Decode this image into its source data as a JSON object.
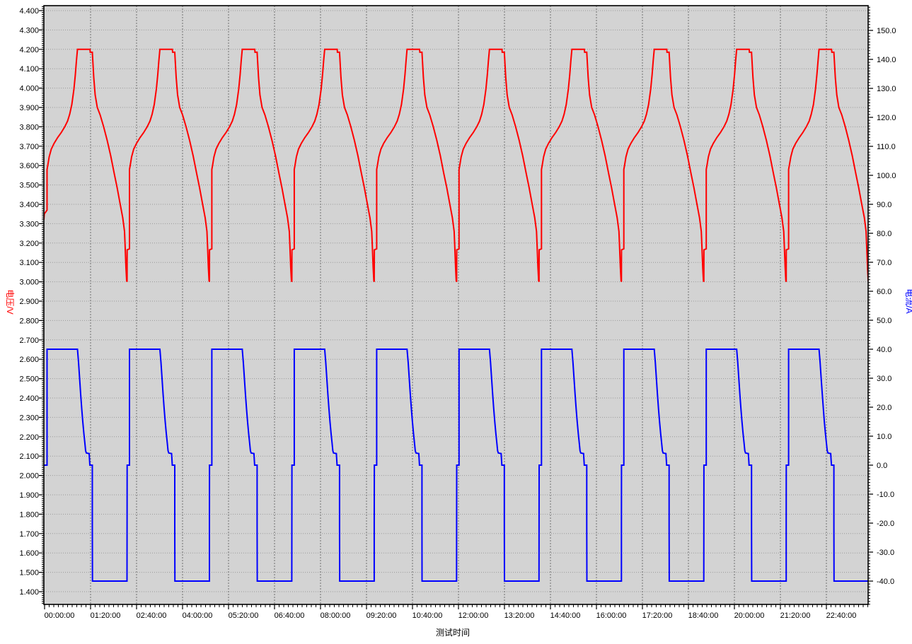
{
  "chart_data": {
    "type": "line",
    "x_axis": {
      "title": "测试时间",
      "tick_interval_seconds": 4800,
      "tick_labels": [
        "00:00:00",
        "01:20:00",
        "02:40:00",
        "04:00:00",
        "05:20:00",
        "06:40:00",
        "08:00:00",
        "09:20:00",
        "10:40:00",
        "12:00:00",
        "13:20:00",
        "14:40:00",
        "16:00:00",
        "17:20:00",
        "18:40:00",
        "20:00:00",
        "21:20:00",
        "22:40:00"
      ]
    },
    "y_left_axis": {
      "title": "电压/V",
      "color": "#ff0000",
      "major_step": 0.1,
      "minor_step": 0.01,
      "tick_labels": [
        "4.400",
        "4.300",
        "4.200",
        "4.100",
        "4.000",
        "3.900",
        "3.800",
        "3.700",
        "3.600",
        "3.500",
        "3.400",
        "3.300",
        "3.200",
        "3.100",
        "3.000",
        "2.900",
        "2.800",
        "2.700",
        "2.600",
        "2.500",
        "2.400",
        "2.300",
        "2.200",
        "2.100",
        "2.000",
        "1.900",
        "1.800",
        "1.700",
        "1.600",
        "1.500",
        "1.400"
      ]
    },
    "y_right_axis": {
      "title": "电流/A",
      "color": "#0000ff",
      "major_step": 10,
      "minor_step": 1,
      "tick_labels": [
        "150.0",
        "140.0",
        "130.0",
        "120.0",
        "110.0",
        "100.0",
        "90.0",
        "80.0",
        "70.0",
        "60.0",
        "50.0",
        "40.0",
        "30.0",
        "20.0",
        "10.0",
        "0.0",
        "-10.0",
        "-20.0",
        "-30.0",
        "-40.0"
      ]
    },
    "plot_style": {
      "background": "#d3d3d3",
      "border_color": "#000000",
      "h_grid_color": "#9a9a9a",
      "v_grid_color": "#6f6f6f"
    },
    "cycles": {
      "count": 10,
      "period_seconds": 8600,
      "first_charge_start_seconds": 260,
      "charge_current_A": 40,
      "discharge_current_A": -40,
      "charge_cutoff_V": 4.2,
      "discharge_cutoff_V": 3.0
    },
    "series": [
      {
        "name": "voltage",
        "axis": "left",
        "color": "#ff0000",
        "pre_points": [
          [
            -74,
            3.32
          ],
          [
            -30,
            3.35
          ],
          [
            260,
            3.37
          ]
        ],
        "cycle_points": [
          [
            0,
            3.58
          ],
          [
            74,
            3.6
          ],
          [
            222,
            3.645
          ],
          [
            443,
            3.685
          ],
          [
            738,
            3.715
          ],
          [
            1108,
            3.745
          ],
          [
            1477,
            3.77
          ],
          [
            1846,
            3.8
          ],
          [
            2142,
            3.83
          ],
          [
            2363,
            3.865
          ],
          [
            2585,
            3.915
          ],
          [
            2806,
            3.995
          ],
          [
            2954,
            4.07
          ],
          [
            3065,
            4.14
          ],
          [
            3175,
            4.2
          ],
          [
            4480,
            4.2
          ],
          [
            4505,
            4.185
          ],
          [
            4726,
            4.185
          ],
          [
            4800,
            4.12
          ],
          [
            4874,
            4.055
          ],
          [
            5022,
            3.965
          ],
          [
            5243,
            3.9
          ],
          [
            5539,
            3.862
          ],
          [
            5908,
            3.8
          ],
          [
            6277,
            3.73
          ],
          [
            6646,
            3.65
          ],
          [
            7015,
            3.558
          ],
          [
            7311,
            3.487
          ],
          [
            7606,
            3.408
          ],
          [
            7902,
            3.33
          ],
          [
            8086,
            3.26
          ],
          [
            8160,
            3.17
          ],
          [
            8234,
            3.075
          ],
          [
            8307,
            3.005
          ],
          [
            8348,
            3.0
          ],
          [
            8356,
            3.165
          ],
          [
            8600,
            3.17
          ]
        ]
      },
      {
        "name": "current",
        "axis": "right",
        "color": "#0000ff",
        "pre_points": [
          [
            -74,
            0
          ],
          [
            260,
            0
          ]
        ],
        "cycle_points": [
          [
            0,
            0
          ],
          [
            0,
            40
          ],
          [
            3175,
            40
          ],
          [
            3286,
            35.5
          ],
          [
            3397,
            30
          ],
          [
            3508,
            24.5
          ],
          [
            3619,
            19.5
          ],
          [
            3729,
            15
          ],
          [
            3840,
            11
          ],
          [
            3951,
            7.5
          ],
          [
            4025,
            5
          ],
          [
            4099,
            4.2
          ],
          [
            4394,
            4.0
          ],
          [
            4431,
            2
          ],
          [
            4468,
            0
          ],
          [
            4726,
            0
          ],
          [
            4726,
            -21
          ],
          [
            4740,
            -40
          ],
          [
            8344,
            -40
          ],
          [
            8348,
            -20
          ],
          [
            8356,
            0
          ],
          [
            8600,
            0
          ]
        ]
      }
    ]
  }
}
